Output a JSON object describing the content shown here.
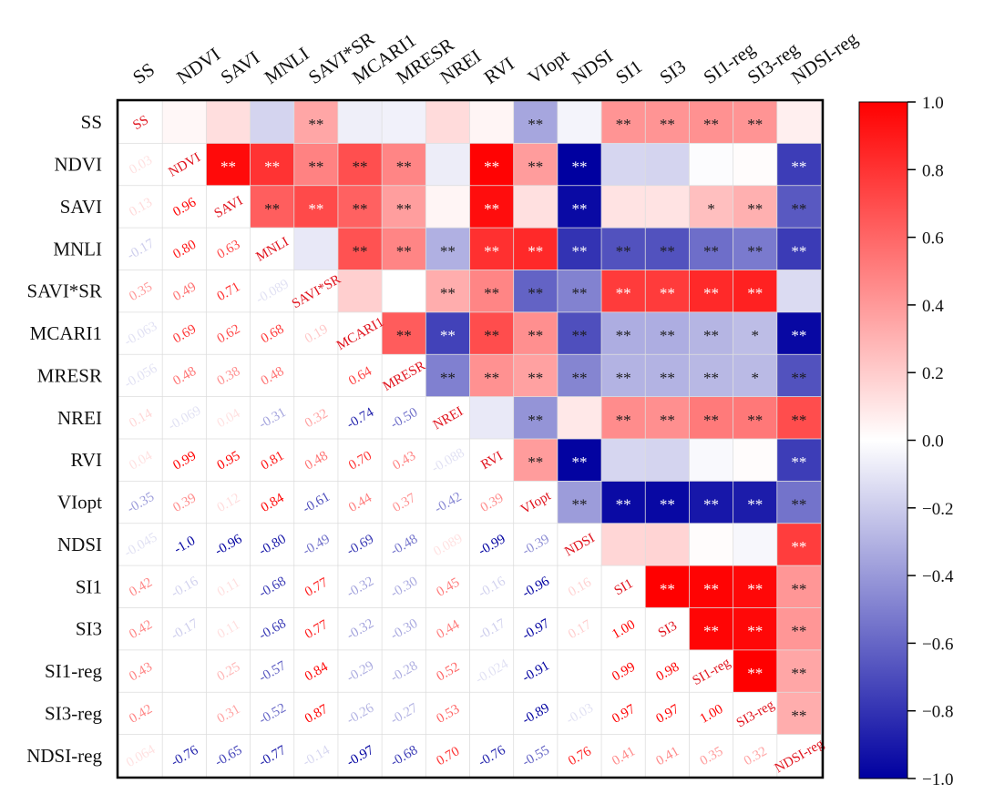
{
  "chart_data": {
    "type": "heatmap",
    "title": "",
    "labels": [
      "SS",
      "NDVI",
      "SAVI",
      "MNLI",
      "SAVI*SR",
      "MCARI1",
      "MRESR",
      "NREI",
      "RVI",
      "VIopt",
      "NDSI",
      "SI1",
      "SI3",
      "SI1-reg",
      "SI3-reg",
      "NDSI-reg"
    ],
    "diagonal_labels": [
      "SS",
      "NDVI",
      "SAVI",
      "MNLI",
      "SAVI*SR",
      "MCARI1",
      "MRESR",
      "NREI",
      "RVI",
      "VIopt",
      "NDSI",
      "SI1",
      "SI3",
      "SI1-reg",
      "SI3-reg",
      "NDSI-reg"
    ],
    "matrix": [
      [
        1.0,
        0.03,
        0.13,
        -0.17,
        0.35,
        -0.063,
        -0.056,
        0.14,
        0.04,
        -0.35,
        -0.045,
        0.42,
        0.42,
        0.43,
        0.42,
        0.064
      ],
      [
        0.03,
        1.0,
        0.96,
        0.8,
        0.49,
        0.69,
        0.48,
        -0.069,
        0.99,
        0.39,
        -1.0,
        -0.16,
        -0.17,
        -0.01,
        0.01,
        -0.76
      ],
      [
        0.13,
        0.96,
        1.0,
        0.63,
        0.71,
        0.62,
        0.38,
        0.04,
        0.95,
        0.12,
        -0.96,
        0.11,
        0.11,
        0.25,
        0.31,
        -0.65
      ],
      [
        -0.17,
        0.8,
        0.63,
        1.0,
        -0.089,
        0.68,
        0.48,
        -0.31,
        0.81,
        0.84,
        -0.8,
        -0.68,
        -0.68,
        -0.57,
        -0.52,
        -0.77
      ],
      [
        0.35,
        0.49,
        0.71,
        -0.089,
        1.0,
        0.19,
        0.0,
        0.32,
        0.48,
        -0.61,
        -0.49,
        0.77,
        0.77,
        0.84,
        0.87,
        -0.14
      ],
      [
        -0.063,
        0.69,
        0.62,
        0.68,
        0.19,
        1.0,
        0.64,
        -0.74,
        0.7,
        0.44,
        -0.69,
        -0.32,
        -0.32,
        -0.29,
        -0.26,
        -0.97
      ],
      [
        -0.056,
        0.48,
        0.38,
        0.48,
        0.0,
        0.64,
        1.0,
        -0.5,
        0.43,
        0.37,
        -0.48,
        -0.3,
        -0.3,
        -0.28,
        -0.27,
        -0.68
      ],
      [
        0.14,
        -0.069,
        0.04,
        -0.31,
        0.32,
        -0.74,
        -0.5,
        1.0,
        -0.088,
        -0.42,
        0.089,
        0.45,
        0.44,
        0.52,
        0.53,
        0.7
      ],
      [
        0.04,
        0.99,
        0.95,
        0.81,
        0.48,
        0.7,
        0.43,
        -0.088,
        1.0,
        0.39,
        -0.99,
        -0.16,
        -0.17,
        -0.024,
        0.01,
        -0.76
      ],
      [
        -0.35,
        0.39,
        0.12,
        0.84,
        -0.61,
        0.44,
        0.37,
        -0.42,
        0.39,
        1.0,
        -0.39,
        -0.96,
        -0.97,
        -0.91,
        -0.89,
        -0.55
      ],
      [
        -0.045,
        -1.0,
        -0.96,
        -0.8,
        -0.49,
        -0.69,
        -0.48,
        0.089,
        -0.99,
        -0.39,
        1.0,
        0.16,
        0.17,
        0.01,
        -0.03,
        0.76
      ],
      [
        0.42,
        -0.16,
        0.11,
        -0.68,
        0.77,
        -0.32,
        -0.3,
        0.45,
        -0.16,
        -0.96,
        0.16,
        1.0,
        1.0,
        0.99,
        0.97,
        0.41
      ],
      [
        0.42,
        -0.17,
        0.11,
        -0.68,
        0.77,
        -0.32,
        -0.3,
        0.44,
        -0.17,
        -0.97,
        0.17,
        1.0,
        1.0,
        0.98,
        0.97,
        0.41
      ],
      [
        0.43,
        -0.01,
        0.25,
        -0.57,
        0.84,
        -0.29,
        -0.28,
        0.52,
        -0.024,
        -0.91,
        0.01,
        0.99,
        0.98,
        1.0,
        1.0,
        0.35
      ],
      [
        0.42,
        0.01,
        0.31,
        -0.52,
        0.87,
        -0.26,
        -0.27,
        0.53,
        0.01,
        -0.89,
        -0.03,
        0.97,
        0.97,
        1.0,
        1.0,
        0.32
      ],
      [
        0.064,
        -0.76,
        -0.65,
        -0.77,
        -0.14,
        -0.97,
        -0.68,
        0.7,
        -0.76,
        -0.55,
        0.76,
        0.41,
        0.41,
        0.35,
        0.32,
        1.0
      ]
    ],
    "lower_text": [
      [
        "",
        "",
        "",
        "",
        "",
        "",
        "",
        "",
        "",
        "",
        "",
        "",
        "",
        "",
        "",
        ""
      ],
      [
        "0.03",
        "",
        "",
        "",
        "",
        "",
        "",
        "",
        "",
        "",
        "",
        "",
        "",
        "",
        "",
        ""
      ],
      [
        "0.13",
        "0.96",
        "",
        "",
        "",
        "",
        "",
        "",
        "",
        "",
        "",
        "",
        "",
        "",
        "",
        ""
      ],
      [
        "-0.17",
        "0.80",
        "0.63",
        "",
        "",
        "",
        "",
        "",
        "",
        "",
        "",
        "",
        "",
        "",
        "",
        ""
      ],
      [
        "0.35",
        "0.49",
        "0.71",
        "-0.089",
        "",
        "",
        "",
        "",
        "",
        "",
        "",
        "",
        "",
        "",
        "",
        ""
      ],
      [
        "-0.063",
        "0.69",
        "0.62",
        "0.68",
        "0.19",
        "",
        "",
        "",
        "",
        "",
        "",
        "",
        "",
        "",
        "",
        ""
      ],
      [
        "-0.056",
        "0.48",
        "0.38",
        "0.48",
        "",
        "0.64",
        "",
        "",
        "",
        "",
        "",
        "",
        "",
        "",
        "",
        ""
      ],
      [
        "0.14",
        "-0.069",
        "0.04",
        "-0.31",
        "0.32",
        "-0.74",
        "-0.50",
        "",
        "",
        "",
        "",
        "",
        "",
        "",
        "",
        ""
      ],
      [
        "0.04",
        "0.99",
        "0.95",
        "0.81",
        "0.48",
        "0.70",
        "0.43",
        "-0.088",
        "",
        "",
        "",
        "",
        "",
        "",
        "",
        ""
      ],
      [
        "-0.35",
        "0.39",
        "0.12",
        "0.84",
        "-0.61",
        "0.44",
        "0.37",
        "-0.42",
        "0.39",
        "",
        "",
        "",
        "",
        "",
        "",
        ""
      ],
      [
        "-0.045",
        "-1.0",
        "-0.96",
        "-0.80",
        "-0.49",
        "-0.69",
        "-0.48",
        "0.089",
        "-0.99",
        "-0.39",
        "",
        "",
        "",
        "",
        "",
        ""
      ],
      [
        "0.42",
        "-0.16",
        "0.11",
        "-0.68",
        "0.77",
        "-0.32",
        "-0.30",
        "0.45",
        "-0.16",
        "-0.96",
        "0.16",
        "",
        "",
        "",
        "",
        ""
      ],
      [
        "0.42",
        "-0.17",
        "0.11",
        "-0.68",
        "0.77",
        "-0.32",
        "-0.30",
        "0.44",
        "-0.17",
        "-0.97",
        "0.17",
        "1.00",
        "",
        "",
        "",
        ""
      ],
      [
        "0.43",
        "",
        "0.25",
        "-0.57",
        "0.84",
        "-0.29",
        "-0.28",
        "0.52",
        "-0.024",
        "-0.91",
        "",
        "0.99",
        "0.98",
        "",
        "",
        ""
      ],
      [
        "0.42",
        "",
        "0.31",
        "-0.52",
        "0.87",
        "-0.26",
        "-0.27",
        "0.53",
        "",
        "-0.89",
        "-0.03",
        "0.97",
        "0.97",
        "1.00",
        "",
        ""
      ],
      [
        "0.064",
        "-0.76",
        "-0.65",
        "-0.77",
        "-0.14",
        "-0.97",
        "-0.68",
        "0.70",
        "-0.76",
        "-0.55",
        "0.76",
        "0.41",
        "0.41",
        "0.35",
        "0.32",
        ""
      ]
    ],
    "upper_marks": [
      [
        "",
        "",
        "",
        "",
        "**",
        "",
        "",
        "",
        "",
        "**",
        "",
        "**",
        "**",
        "**",
        "**",
        ""
      ],
      [
        "",
        "",
        "**",
        "**",
        "**",
        "**",
        "**",
        "",
        "**",
        "**",
        "**",
        "",
        "",
        "",
        "",
        "**"
      ],
      [
        "",
        "",
        "",
        "**",
        "**",
        "**",
        "**",
        "",
        "**",
        "",
        "**",
        "",
        "",
        "*",
        "**",
        "**"
      ],
      [
        "",
        "",
        "",
        "",
        "",
        "**",
        "**",
        "**",
        "**",
        "**",
        "**",
        "**",
        "**",
        "**",
        "**",
        "**"
      ],
      [
        "",
        "",
        "",
        "",
        "",
        "",
        "",
        "**",
        "**",
        "**",
        "**",
        "**",
        "**",
        "**",
        "**",
        ""
      ],
      [
        "",
        "",
        "",
        "",
        "",
        "",
        "**",
        "**",
        "**",
        "**",
        "**",
        "**",
        "**",
        "**",
        "*",
        "**"
      ],
      [
        "",
        "",
        "",
        "",
        "",
        "",
        "",
        "**",
        "**",
        "**",
        "**",
        "**",
        "**",
        "**",
        "*",
        "**"
      ],
      [
        "",
        "",
        "",
        "",
        "",
        "",
        "",
        "",
        "",
        "**",
        "",
        "**",
        "**",
        "**",
        "**",
        "**"
      ],
      [
        "",
        "",
        "",
        "",
        "",
        "",
        "",
        "",
        "",
        "**",
        "**",
        "",
        "",
        "",
        "",
        "**"
      ],
      [
        "",
        "",
        "",
        "",
        "",
        "",
        "",
        "",
        "",
        "",
        "**",
        "**",
        "**",
        "**",
        "**",
        "**"
      ],
      [
        "",
        "",
        "",
        "",
        "",
        "",
        "",
        "",
        "",
        "",
        "",
        "",
        "",
        "",
        "",
        "**"
      ],
      [
        "",
        "",
        "",
        "",
        "",
        "",
        "",
        "",
        "",
        "",
        "",
        "",
        "**",
        "**",
        "**",
        "**"
      ],
      [
        "",
        "",
        "",
        "",
        "",
        "",
        "",
        "",
        "",
        "",
        "",
        "",
        "",
        "**",
        "**",
        "**"
      ],
      [
        "",
        "",
        "",
        "",
        "",
        "",
        "",
        "",
        "",
        "",
        "",
        "",
        "",
        "",
        "**",
        "**"
      ],
      [
        "",
        "",
        "",
        "",
        "",
        "",
        "",
        "",
        "",
        "",
        "",
        "",
        "",
        "",
        "",
        "**"
      ],
      [
        "",
        "",
        "",
        "",
        "",
        "",
        "",
        "",
        "",
        "",
        "",
        "",
        "",
        "",
        "",
        ""
      ]
    ],
    "colorbar": {
      "range": [
        -1.0,
        1.0
      ],
      "ticks": [
        "1.0",
        "0.8",
        "0.6",
        "0.4",
        "0.2",
        "0.0",
        "−0.2",
        "−0.4",
        "−0.6",
        "−0.8",
        "−1.0"
      ],
      "tick_values": [
        1.0,
        0.8,
        0.6,
        0.4,
        0.2,
        0.0,
        -0.2,
        -0.4,
        -0.6,
        -0.8,
        -1.0
      ],
      "colors": {
        "negative": "#0000a0",
        "zero": "#ffffff",
        "positive": "#ff0000"
      }
    },
    "grid": true,
    "legend": "right"
  }
}
